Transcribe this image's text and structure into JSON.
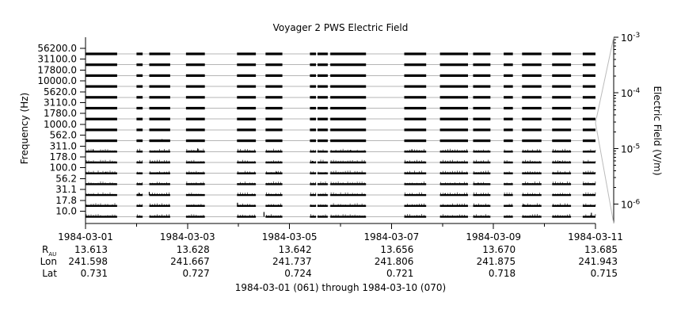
{
  "chart_data": {
    "type": "line",
    "title": "Voyager 2 PWS Electric Field",
    "ylabel": "Frequency (Hz)",
    "colorbar_label": "Electric Field (V/m)",
    "caption": "1984-03-01 (061) through 1984-03-10 (070)",
    "channel_labels": [
      "56200.0",
      "31100.0",
      "17800.0",
      "10000.0",
      "5620.0",
      "3110.0",
      "1780.0",
      "1000.0",
      "562.0",
      "311.0",
      "178.0",
      "100.0",
      "56.2",
      "31.1",
      "17.8",
      "10.0"
    ],
    "colorbar": {
      "scale": "log",
      "range": [
        4.5e-07,
        0.001
      ],
      "ticks": [
        {
          "value": 0.001,
          "mantissa": "10",
          "exp": "-3"
        },
        {
          "value": 0.0001,
          "mantissa": "10",
          "exp": "-4"
        },
        {
          "value": 1e-05,
          "mantissa": "10",
          "exp": "-5"
        },
        {
          "value": 1e-06,
          "mantissa": "10",
          "exp": "-6"
        }
      ]
    },
    "x_range_days": [
      0,
      10
    ],
    "x_ticks": [
      {
        "date": "1984-03-01",
        "r_au": "13.613",
        "lon": "241.598",
        "lat": "0.731"
      },
      {
        "date": "1984-03-03",
        "r_au": "13.628",
        "lon": "241.667",
        "lat": "0.727"
      },
      {
        "date": "1984-03-05",
        "r_au": "13.642",
        "lon": "241.737",
        "lat": "0.724"
      },
      {
        "date": "1984-03-07",
        "r_au": "13.656",
        "lon": "241.806",
        "lat": "0.721"
      },
      {
        "date": "1984-03-09",
        "r_au": "13.670",
        "lon": "241.875",
        "lat": "0.718"
      },
      {
        "date": "1984-03-11",
        "r_au": "13.685",
        "lon": "241.943",
        "lat": "0.715"
      }
    ],
    "ephemeris_labels": {
      "r_main": "R",
      "r_sub": "AU",
      "lon": "Lon",
      "lat": "Lat"
    },
    "data_segments_days": [
      [
        0.0,
        0.62
      ],
      [
        1.0,
        1.12
      ],
      [
        1.25,
        1.66
      ],
      [
        1.97,
        2.34
      ],
      [
        2.97,
        3.34
      ],
      [
        3.53,
        3.86
      ],
      [
        4.4,
        4.52
      ],
      [
        4.55,
        4.75
      ],
      [
        4.8,
        5.5
      ],
      [
        6.25,
        6.68
      ],
      [
        6.95,
        7.5
      ],
      [
        7.6,
        7.94
      ],
      [
        8.2,
        8.38
      ],
      [
        8.56,
        8.94
      ],
      [
        9.15,
        9.52
      ],
      [
        9.75,
        10.0
      ]
    ],
    "bursts": [
      {
        "day": 0.15,
        "channel": 9,
        "height": 3
      },
      {
        "day": 0.4,
        "channel": 11,
        "height": 2
      },
      {
        "day": 1.05,
        "channel": 13,
        "height": 3
      },
      {
        "day": 1.25,
        "channel": 13,
        "height": 4
      },
      {
        "day": 1.5,
        "channel": 8,
        "height": 2
      },
      {
        "day": 2.2,
        "channel": 9,
        "height": 4
      },
      {
        "day": 2.98,
        "channel": 14,
        "height": 4
      },
      {
        "day": 3.5,
        "channel": 15,
        "height": 6
      },
      {
        "day": 3.75,
        "channel": 11,
        "height": 2
      },
      {
        "day": 4.45,
        "channel": 10,
        "height": 2
      },
      {
        "day": 5.2,
        "channel": 9,
        "height": 2
      },
      {
        "day": 6.4,
        "channel": 9,
        "height": 3
      },
      {
        "day": 7.05,
        "channel": 13,
        "height": 2
      },
      {
        "day": 7.7,
        "channel": 12,
        "height": 2
      },
      {
        "day": 8.6,
        "channel": 14,
        "height": 2
      },
      {
        "day": 9.3,
        "channel": 10,
        "height": 2
      },
      {
        "day": 9.92,
        "channel": 15,
        "height": 5
      }
    ]
  }
}
